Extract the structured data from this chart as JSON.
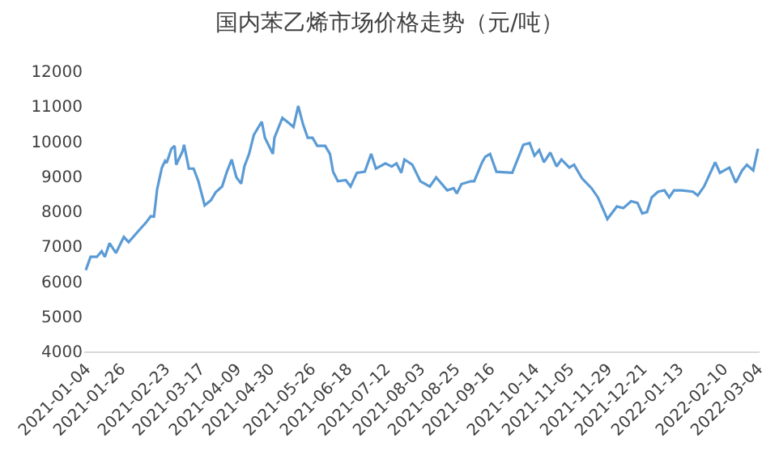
{
  "chart_data": {
    "type": "line",
    "title": "国内苯乙烯市场价格走势（元/吨）",
    "x": [
      "2021-01-04",
      "2021-01-07",
      "2021-01-11",
      "2021-01-14",
      "2021-01-16",
      "2021-01-19",
      "2021-01-23",
      "2021-01-28",
      "2021-01-31",
      "2021-02-07",
      "2021-02-11",
      "2021-02-14",
      "2021-02-16",
      "2021-02-18",
      "2021-02-21",
      "2021-02-23",
      "2021-02-24",
      "2021-02-27",
      "2021-03-01",
      "2021-03-02",
      "2021-03-06",
      "2021-03-07",
      "2021-03-10",
      "2021-03-13",
      "2021-03-16",
      "2021-03-20",
      "2021-03-24",
      "2021-03-27",
      "2021-03-31",
      "2021-04-03",
      "2021-04-06",
      "2021-04-09",
      "2021-04-12",
      "2021-04-14",
      "2021-04-17",
      "2021-04-20",
      "2021-04-23",
      "2021-04-25",
      "2021-04-27",
      "2021-05-02",
      "2021-05-03",
      "2021-05-08",
      "2021-05-11",
      "2021-05-15",
      "2021-05-18",
      "2021-05-21",
      "2021-05-24",
      "2021-05-27",
      "2021-05-30",
      "2021-06-04",
      "2021-06-07",
      "2021-06-09",
      "2021-06-12",
      "2021-06-17",
      "2021-06-20",
      "2021-06-24",
      "2021-06-29",
      "2021-07-03",
      "2021-07-06",
      "2021-07-12",
      "2021-07-16",
      "2021-07-19",
      "2021-07-22",
      "2021-07-24",
      "2021-07-29",
      "2021-08-03",
      "2021-08-09",
      "2021-08-13",
      "2021-08-20",
      "2021-08-24",
      "2021-08-26",
      "2021-08-29",
      "2021-09-04",
      "2021-09-06",
      "2021-09-11",
      "2021-09-13",
      "2021-09-16",
      "2021-09-20",
      "2021-09-30",
      "2021-10-07",
      "2021-10-11",
      "2021-10-14",
      "2021-10-17",
      "2021-10-20",
      "2021-10-24",
      "2021-10-28",
      "2021-10-31",
      "2021-11-05",
      "2021-11-08",
      "2021-11-13",
      "2021-11-19",
      "2021-11-23",
      "2021-11-29",
      "2021-12-05",
      "2021-12-09",
      "2021-12-14",
      "2021-12-18",
      "2021-12-21",
      "2021-12-24",
      "2021-12-27",
      "2021-12-31",
      "2022-01-04",
      "2022-01-07",
      "2022-01-10",
      "2022-01-15",
      "2022-01-22",
      "2022-01-25",
      "2022-01-29",
      "2022-02-05",
      "2022-02-08",
      "2022-02-14",
      "2022-02-18",
      "2022-02-22",
      "2022-02-25",
      "2022-03-01",
      "2022-03-04"
    ],
    "series": [
      {
        "color": "#5b9bd5",
        "values": [
          6320,
          6700,
          6700,
          6860,
          6700,
          7090,
          6810,
          7270,
          7120,
          7480,
          7680,
          7860,
          7850,
          8630,
          9250,
          9440,
          9380,
          9790,
          9870,
          9330,
          9710,
          9900,
          9220,
          9220,
          8860,
          8170,
          8320,
          8550,
          8710,
          9130,
          9480,
          8970,
          8790,
          9280,
          9640,
          10180,
          10410,
          10560,
          10100,
          9640,
          10100,
          10670,
          10560,
          10410,
          11010,
          10490,
          10100,
          10100,
          9870,
          9870,
          9640,
          9130,
          8860,
          8890,
          8710,
          9100,
          9130,
          9640,
          9220,
          9370,
          9280,
          9370,
          9100,
          9480,
          9330,
          8860,
          8710,
          8970,
          8600,
          8660,
          8510,
          8780,
          8860,
          8860,
          9400,
          9560,
          9640,
          9130,
          9100,
          9900,
          9950,
          9590,
          9750,
          9400,
          9680,
          9280,
          9480,
          9250,
          9330,
          8940,
          8660,
          8400,
          7780,
          8140,
          8090,
          8290,
          8240,
          7940,
          7980,
          8400,
          8560,
          8600,
          8400,
          8600,
          8600,
          8560,
          8450,
          8710,
          9400,
          9100,
          9250,
          8820,
          9170,
          9330,
          9170,
          9790
        ]
      }
    ],
    "xlim": [
      "2021-01-03",
      "2022-03-05"
    ],
    "xticks": [
      {
        "value": "2021-01-04",
        "label": "2021-01-04"
      },
      {
        "value": "2021-01-26",
        "label": "2021-01-26"
      },
      {
        "value": "2021-02-23",
        "label": "2021-02-23"
      },
      {
        "value": "2021-03-17",
        "label": "2021-03-17"
      },
      {
        "value": "2021-04-09",
        "label": "2021-04-09"
      },
      {
        "value": "2021-04-30",
        "label": "2021-04-30"
      },
      {
        "value": "2021-05-26",
        "label": "2021-05-26"
      },
      {
        "value": "2021-06-18",
        "label": "2021-06-18"
      },
      {
        "value": "2021-07-12",
        "label": "2021-07-12"
      },
      {
        "value": "2021-08-03",
        "label": "2021-08-03"
      },
      {
        "value": "2021-08-25",
        "label": "2021-08-25"
      },
      {
        "value": "2021-09-16",
        "label": "2021-09-16"
      },
      {
        "value": "2021-10-14",
        "label": "2021-10-14"
      },
      {
        "value": "2021-11-05",
        "label": "2021-11-05"
      },
      {
        "value": "2021-11-29",
        "label": "2021-11-29"
      },
      {
        "value": "2021-12-21",
        "label": "2021-12-21"
      },
      {
        "value": "2022-01-13",
        "label": "2022-01-13"
      },
      {
        "value": "2022-02-10",
        "label": "2022-02-10"
      },
      {
        "value": "2022-03-04",
        "label": "2022-03-04"
      }
    ],
    "ylim": [
      4000,
      12000
    ],
    "yticks": [
      4000,
      5000,
      6000,
      7000,
      8000,
      9000,
      10000,
      11000,
      12000
    ],
    "grid": false,
    "legend": false,
    "marker": "none",
    "line_style": "solid"
  }
}
